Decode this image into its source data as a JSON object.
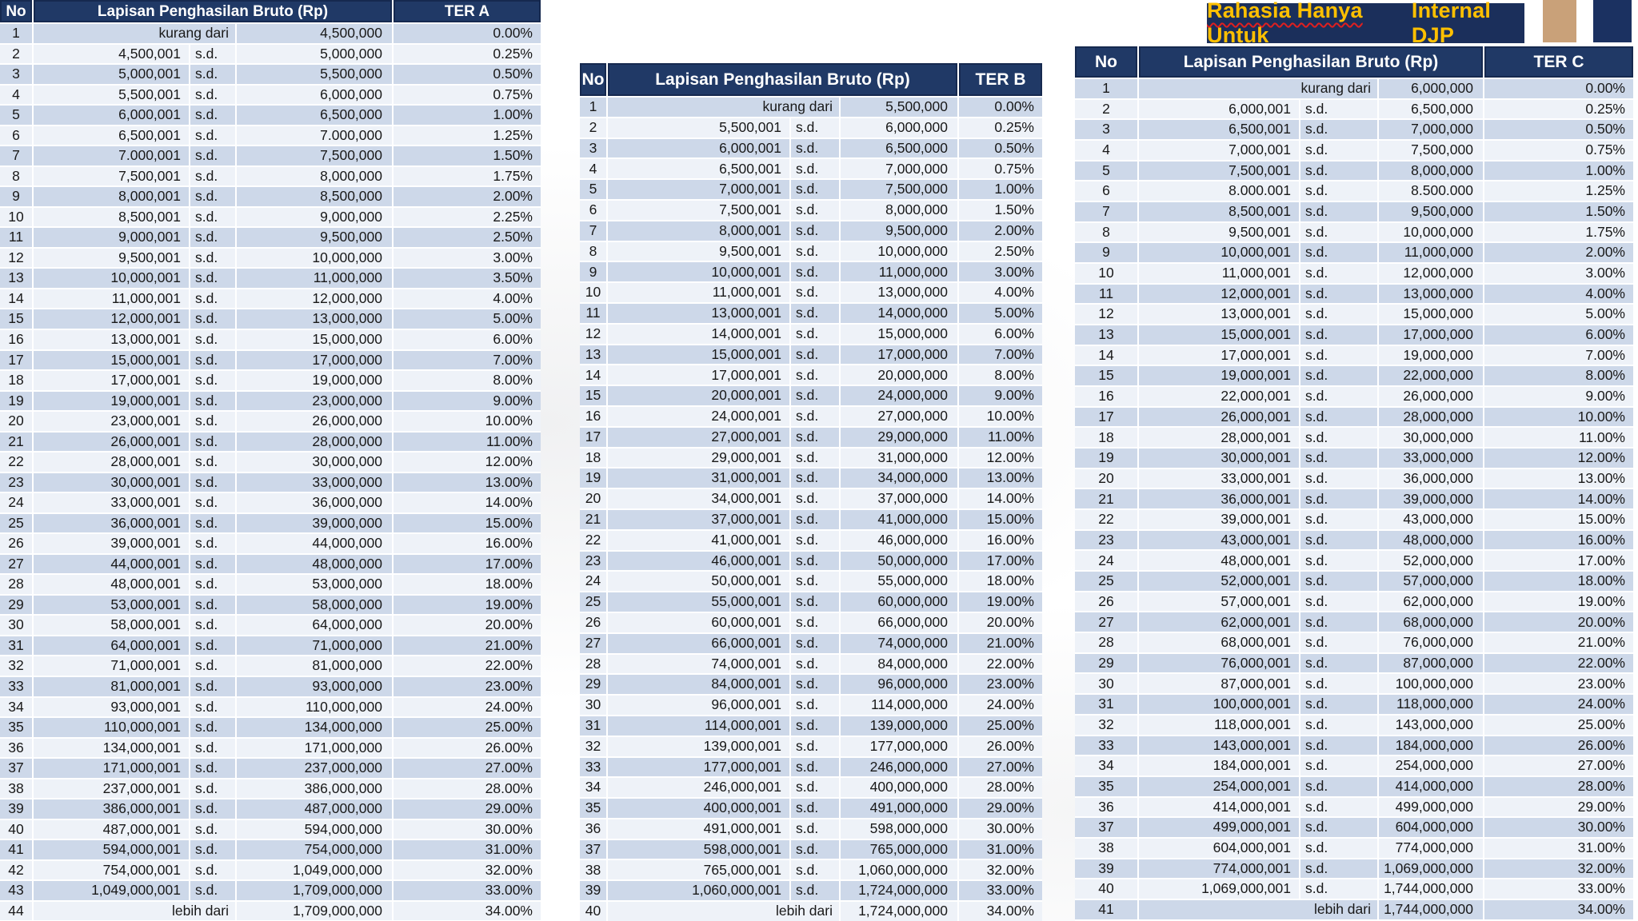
{
  "banner": {
    "squiggled_part": "Rahasia Hanya Untuk",
    "plain_part": "Internal DJP"
  },
  "colors": {
    "header_navy": "#203966",
    "header_border": "#16294f",
    "row_odd": "#cdd8e9",
    "row_even": "#eef2f8",
    "banner_bg": "#1b2f5b",
    "banner_text": "#ffc000",
    "squiggle_red": "#e01f1f",
    "stripe_tan": "#c9a179",
    "stripe_navy": "#1b3161"
  },
  "tables": [
    {
      "headers": {
        "no": "No",
        "range": "Lapisan Penghasilan Bruto (Rp)",
        "rate": "TER A"
      },
      "rows": [
        [
          "1",
          "",
          "kurang dari",
          "4,500,000",
          "0.00%"
        ],
        [
          "2",
          "4,500,001",
          "s.d.",
          "5,000,000",
          "0.25%"
        ],
        [
          "3",
          "5,000,001",
          "s.d.",
          "5,500,000",
          "0.50%"
        ],
        [
          "4",
          "5,500,001",
          "s.d.",
          "6,000,000",
          "0.75%"
        ],
        [
          "5",
          "6,000,001",
          "s.d.",
          "6,500,000",
          "1.00%"
        ],
        [
          "6",
          "6,500,001",
          "s.d.",
          "7.000,000",
          "1.25%"
        ],
        [
          "7",
          "7.000,001",
          "s.d.",
          "7,500,000",
          "1.50%"
        ],
        [
          "8",
          "7,500,001",
          "s.d.",
          "8,000,000",
          "1.75%"
        ],
        [
          "9",
          "8,000,001",
          "s.d.",
          "8,500,000",
          "2.00%"
        ],
        [
          "10",
          "8,500,001",
          "s.d.",
          "9,000,000",
          "2.25%"
        ],
        [
          "11",
          "9,000,001",
          "s.d.",
          "9,500,000",
          "2.50%"
        ],
        [
          "12",
          "9,500,001",
          "s.d.",
          "10,000,000",
          "3.00%"
        ],
        [
          "13",
          "10,000,001",
          "s.d.",
          "11,000,000",
          "3.50%"
        ],
        [
          "14",
          "11,000,001",
          "s.d.",
          "12,000,000",
          "4.00%"
        ],
        [
          "15",
          "12,000,001",
          "s.d.",
          "13,000,000",
          "5.00%"
        ],
        [
          "16",
          "13,000,001",
          "s.d.",
          "15,000,000",
          "6.00%"
        ],
        [
          "17",
          "15,000,001",
          "s.d.",
          "17,000,000",
          "7.00%"
        ],
        [
          "18",
          "17,000,001",
          "s.d.",
          "19,000,000",
          "8.00%"
        ],
        [
          "19",
          "19,000,001",
          "s.d.",
          "23,000,000",
          "9.00%"
        ],
        [
          "20",
          "23,000,001",
          "s.d.",
          "26,000,000",
          "10.00%"
        ],
        [
          "21",
          "26,000,001",
          "s.d.",
          "28,000,000",
          "11.00%"
        ],
        [
          "22",
          "28,000,001",
          "s.d.",
          "30,000,000",
          "12.00%"
        ],
        [
          "23",
          "30,000,001",
          "s.d.",
          "33,000,000",
          "13.00%"
        ],
        [
          "24",
          "33,000,001",
          "s.d.",
          "36,000,000",
          "14.00%"
        ],
        [
          "25",
          "36,000,001",
          "s.d.",
          "39,000,000",
          "15.00%"
        ],
        [
          "26",
          "39,000,001",
          "s.d.",
          "44,000,000",
          "16.00%"
        ],
        [
          "27",
          "44,000,001",
          "s.d.",
          "48,000,000",
          "17.00%"
        ],
        [
          "28",
          "48,000,001",
          "s.d.",
          "53,000,000",
          "18.00%"
        ],
        [
          "29",
          "53,000,001",
          "s.d.",
          "58,000,000",
          "19.00%"
        ],
        [
          "30",
          "58,000,001",
          "s.d.",
          "64,000,000",
          "20.00%"
        ],
        [
          "31",
          "64,000,001",
          "s.d.",
          "71,000,000",
          "21.00%"
        ],
        [
          "32",
          "71,000,001",
          "s.d.",
          "81,000,000",
          "22.00%"
        ],
        [
          "33",
          "81,000,001",
          "s.d.",
          "93,000,000",
          "23.00%"
        ],
        [
          "34",
          "93,000,001",
          "s.d.",
          "110,000,000",
          "24.00%"
        ],
        [
          "35",
          "110,000,001",
          "s.d.",
          "134,000,000",
          "25.00%"
        ],
        [
          "36",
          "134,000,001",
          "s.d.",
          "171,000,000",
          "26.00%"
        ],
        [
          "37",
          "171,000,001",
          "s.d.",
          "237,000,000",
          "27.00%"
        ],
        [
          "38",
          "237,000,001",
          "s.d.",
          "386,000,000",
          "28.00%"
        ],
        [
          "39",
          "386,000,001",
          "s.d.",
          "487,000,000",
          "29.00%"
        ],
        [
          "40",
          "487,000,001",
          "s.d.",
          "594,000,000",
          "30.00%"
        ],
        [
          "41",
          "594,000,001",
          "s.d.",
          "754,000,000",
          "31.00%"
        ],
        [
          "42",
          "754,000,001",
          "s.d.",
          "1,049,000,000",
          "32.00%"
        ],
        [
          "43",
          "1,049,000,001",
          "s.d.",
          "1,709,000,000",
          "33.00%"
        ],
        [
          "44",
          "",
          "lebih dari",
          "1,709,000,000",
          "34.00%"
        ]
      ]
    },
    {
      "headers": {
        "no": "No",
        "range": "Lapisan Penghasilan Bruto (Rp)",
        "rate": "TER B"
      },
      "rows": [
        [
          "1",
          "",
          "kurang dari",
          "5,500,000",
          "0.00%"
        ],
        [
          "2",
          "5,500,001",
          "s.d.",
          "6,000,000",
          "0.25%"
        ],
        [
          "3",
          "6,000,001",
          "s.d.",
          "6,500,000",
          "0.50%"
        ],
        [
          "4",
          "6,500,001",
          "s.d.",
          "7,000,000",
          "0.75%"
        ],
        [
          "5",
          "7,000,001",
          "s.d.",
          "7,500,000",
          "1.00%"
        ],
        [
          "6",
          "7,500,001",
          "s.d.",
          "8,000,000",
          "1.50%"
        ],
        [
          "7",
          "8,000,001",
          "s.d.",
          "9,500,000",
          "2.00%"
        ],
        [
          "8",
          "9,500,001",
          "s.d.",
          "10,000,000",
          "2.50%"
        ],
        [
          "9",
          "10,000,001",
          "s.d.",
          "11,000,000",
          "3.00%"
        ],
        [
          "10",
          "11,000,001",
          "s.d.",
          "13,000,000",
          "4.00%"
        ],
        [
          "11",
          "13,000,001",
          "s.d.",
          "14,000,000",
          "5.00%"
        ],
        [
          "12",
          "14,000,001",
          "s.d.",
          "15,000,000",
          "6.00%"
        ],
        [
          "13",
          "15,000,001",
          "s.d.",
          "17,000,000",
          "7.00%"
        ],
        [
          "14",
          "17,000,001",
          "s.d.",
          "20,000,000",
          "8.00%"
        ],
        [
          "15",
          "20,000,001",
          "s.d.",
          "24,000,000",
          "9.00%"
        ],
        [
          "16",
          "24,000,001",
          "s.d.",
          "27,000,000",
          "10.00%"
        ],
        [
          "17",
          "27,000,001",
          "s.d.",
          "29,000,000",
          "11.00%"
        ],
        [
          "18",
          "29,000,001",
          "s.d.",
          "31,000,000",
          "12.00%"
        ],
        [
          "19",
          "31,000,001",
          "s.d.",
          "34,000,000",
          "13.00%"
        ],
        [
          "20",
          "34,000,001",
          "s.d.",
          "37,000,000",
          "14.00%"
        ],
        [
          "21",
          "37,000,001",
          "s.d.",
          "41,000,000",
          "15.00%"
        ],
        [
          "22",
          "41,000,001",
          "s.d.",
          "46,000,000",
          "16.00%"
        ],
        [
          "23",
          "46,000,001",
          "s.d.",
          "50,000,000",
          "17.00%"
        ],
        [
          "24",
          "50,000,001",
          "s.d.",
          "55,000,000",
          "18.00%"
        ],
        [
          "25",
          "55,000,001",
          "s.d.",
          "60,000,000",
          "19.00%"
        ],
        [
          "26",
          "60,000,001",
          "s.d.",
          "66,000,000",
          "20.00%"
        ],
        [
          "27",
          "66,000,001",
          "s.d.",
          "74,000,000",
          "21.00%"
        ],
        [
          "28",
          "74,000,001",
          "s.d.",
          "84,000,000",
          "22.00%"
        ],
        [
          "29",
          "84,000,001",
          "s.d.",
          "96,000,000",
          "23.00%"
        ],
        [
          "30",
          "96,000,001",
          "s.d.",
          "114,000,000",
          "24.00%"
        ],
        [
          "31",
          "114,000,001",
          "s.d.",
          "139,000,000",
          "25.00%"
        ],
        [
          "32",
          "139,000,001",
          "s.d.",
          "177,000,000",
          "26.00%"
        ],
        [
          "33",
          "177,000,001",
          "s.d.",
          "246,000,000",
          "27.00%"
        ],
        [
          "34",
          "246,000,001",
          "s.d.",
          "400,000,000",
          "28.00%"
        ],
        [
          "35",
          "400,000,001",
          "s.d.",
          "491,000,000",
          "29.00%"
        ],
        [
          "36",
          "491,000,001",
          "s.d.",
          "598,000,000",
          "30.00%"
        ],
        [
          "37",
          "598,000,001",
          "s.d.",
          "765,000,000",
          "31.00%"
        ],
        [
          "38",
          "765,000,001",
          "s.d.",
          "1,060,000,000",
          "32.00%"
        ],
        [
          "39",
          "1,060,000,001",
          "s.d.",
          "1,724,000,000",
          "33.00%"
        ],
        [
          "40",
          "",
          "lebih dari",
          "1,724,000,000",
          "34.00%"
        ]
      ]
    },
    {
      "headers": {
        "no": "No",
        "range": "Lapisan Penghasilan Bruto (Rp)",
        "rate": "TER C"
      },
      "rows": [
        [
          "1",
          "",
          "kurang dari",
          "6,000,000",
          "0.00%"
        ],
        [
          "2",
          "6,000,001",
          "s.d.",
          "6,500,000",
          "0.25%"
        ],
        [
          "3",
          "6,500,001",
          "s.d.",
          "7,000,000",
          "0.50%"
        ],
        [
          "4",
          "7,000,001",
          "s.d.",
          "7,500,000",
          "0.75%"
        ],
        [
          "5",
          "7,500,001",
          "s.d.",
          "8,000,000",
          "1.00%"
        ],
        [
          "6",
          "8.000.001",
          "s.d.",
          "8.500.000",
          "1.25%"
        ],
        [
          "7",
          "8,500,001",
          "s.d.",
          "9,500,000",
          "1.50%"
        ],
        [
          "8",
          "9,500,001",
          "s.d.",
          "10,000,000",
          "1.75%"
        ],
        [
          "9",
          "10,000,001",
          "s.d.",
          "11,000,000",
          "2.00%"
        ],
        [
          "10",
          "11,000,001",
          "s.d.",
          "12,000,000",
          "3.00%"
        ],
        [
          "11",
          "12,000,001",
          "s.d.",
          "13,000,000",
          "4.00%"
        ],
        [
          "12",
          "13,000,001",
          "s.d.",
          "15,000,000",
          "5.00%"
        ],
        [
          "13",
          "15,000,001",
          "s.d.",
          "17,000,000",
          "6.00%"
        ],
        [
          "14",
          "17,000,001",
          "s.d.",
          "19,000,000",
          "7.00%"
        ],
        [
          "15",
          "19,000,001",
          "s.d.",
          "22,000,000",
          "8.00%"
        ],
        [
          "16",
          "22,000,001",
          "s.d.",
          "26,000,000",
          "9.00%"
        ],
        [
          "17",
          "26,000,001",
          "s.d.",
          "28,000,000",
          "10.00%"
        ],
        [
          "18",
          "28,000,001",
          "s.d.",
          "30,000,000",
          "11.00%"
        ],
        [
          "19",
          "30,000,001",
          "s.d.",
          "33,000,000",
          "12.00%"
        ],
        [
          "20",
          "33,000,001",
          "s.d.",
          "36,000,000",
          "13.00%"
        ],
        [
          "21",
          "36,000,001",
          "s.d.",
          "39,000,000",
          "14.00%"
        ],
        [
          "22",
          "39,000,001",
          "s.d.",
          "43,000,000",
          "15.00%"
        ],
        [
          "23",
          "43,000,001",
          "s.d.",
          "48,000,000",
          "16.00%"
        ],
        [
          "24",
          "48,000,001",
          "s.d.",
          "52,000,000",
          "17.00%"
        ],
        [
          "25",
          "52,000,001",
          "s.d.",
          "57,000,000",
          "18.00%"
        ],
        [
          "26",
          "57,000,001",
          "s.d.",
          "62,000,000",
          "19.00%"
        ],
        [
          "27",
          "62,000,001",
          "s.d.",
          "68,000,000",
          "20.00%"
        ],
        [
          "28",
          "68,000,001",
          "s.d.",
          "76,000,000",
          "21.00%"
        ],
        [
          "29",
          "76,000,001",
          "s.d.",
          "87,000,000",
          "22.00%"
        ],
        [
          "30",
          "87,000,001",
          "s.d.",
          "100,000,000",
          "23.00%"
        ],
        [
          "31",
          "100,000,001",
          "s.d.",
          "118,000,000",
          "24.00%"
        ],
        [
          "32",
          "118,000,001",
          "s.d.",
          "143,000,000",
          "25.00%"
        ],
        [
          "33",
          "143,000,001",
          "s.d.",
          "184,000,000",
          "26.00%"
        ],
        [
          "34",
          "184,000,001",
          "s.d.",
          "254,000,000",
          "27.00%"
        ],
        [
          "35",
          "254,000,001",
          "s.d.",
          "414,000,000",
          "28.00%"
        ],
        [
          "36",
          "414,000,001",
          "s.d.",
          "499,000,000",
          "29.00%"
        ],
        [
          "37",
          "499,000,001",
          "s.d.",
          "604,000,000",
          "30.00%"
        ],
        [
          "38",
          "604,000,001",
          "s.d.",
          "774,000,000",
          "31.00%"
        ],
        [
          "39",
          "774,000,001",
          "s.d.",
          "1,069,000,000",
          "32.00%"
        ],
        [
          "40",
          "1,069,000,001",
          "s.d.",
          "1,744,000,000",
          "33.00%"
        ],
        [
          "41",
          "",
          "lebih dari",
          "1,744,000,000",
          "34.00%"
        ]
      ]
    }
  ]
}
